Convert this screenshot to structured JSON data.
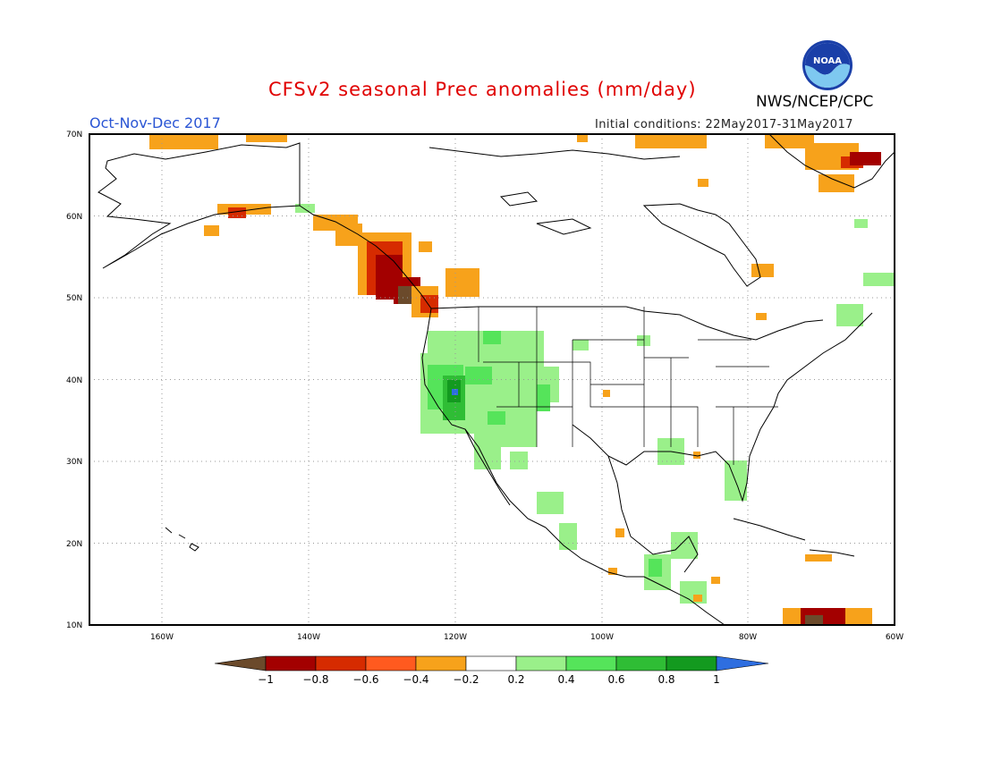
{
  "title": "CFSv2 seasonal Prec anomalies (mm/day)",
  "season": "Oct-Nov-Dec 2017",
  "initial_conditions": "Initial conditions: 22May2017-31May2017",
  "agency": "NWS/NCEP/CPC",
  "logo_text": "NOAA",
  "map": {
    "lat_labels": [
      "70N",
      "60N",
      "50N",
      "40N",
      "30N",
      "20N",
      "10N"
    ],
    "lon_labels": [
      "160W",
      "140W",
      "120W",
      "100W",
      "80W",
      "60W"
    ]
  },
  "colorbar": {
    "labels": [
      "−1",
      "−0.8",
      "−0.6",
      "−0.4",
      "−0.2",
      "0.2",
      "0.4",
      "0.6",
      "0.8",
      "1"
    ],
    "colors": [
      "#6b4a2b",
      "#a30000",
      "#d62b00",
      "#ff5a1f",
      "#f7a21b",
      "#ffffff",
      "#9af08a",
      "#55e45a",
      "#2fbd35",
      "#139a1f",
      "#2e6ee0"
    ]
  },
  "colors": {
    "title": "#e00000",
    "season": "#2a55d4",
    "brown": "#6b4a2b",
    "darkred": "#a30000",
    "red": "#d62b00",
    "redorange": "#ff5a1f",
    "orange": "#f7a21b",
    "lightgreen": "#9af08a",
    "green": "#55e45a",
    "midgreen": "#2fbd35",
    "darkgreen": "#139a1f",
    "blue": "#2e6ee0"
  }
}
